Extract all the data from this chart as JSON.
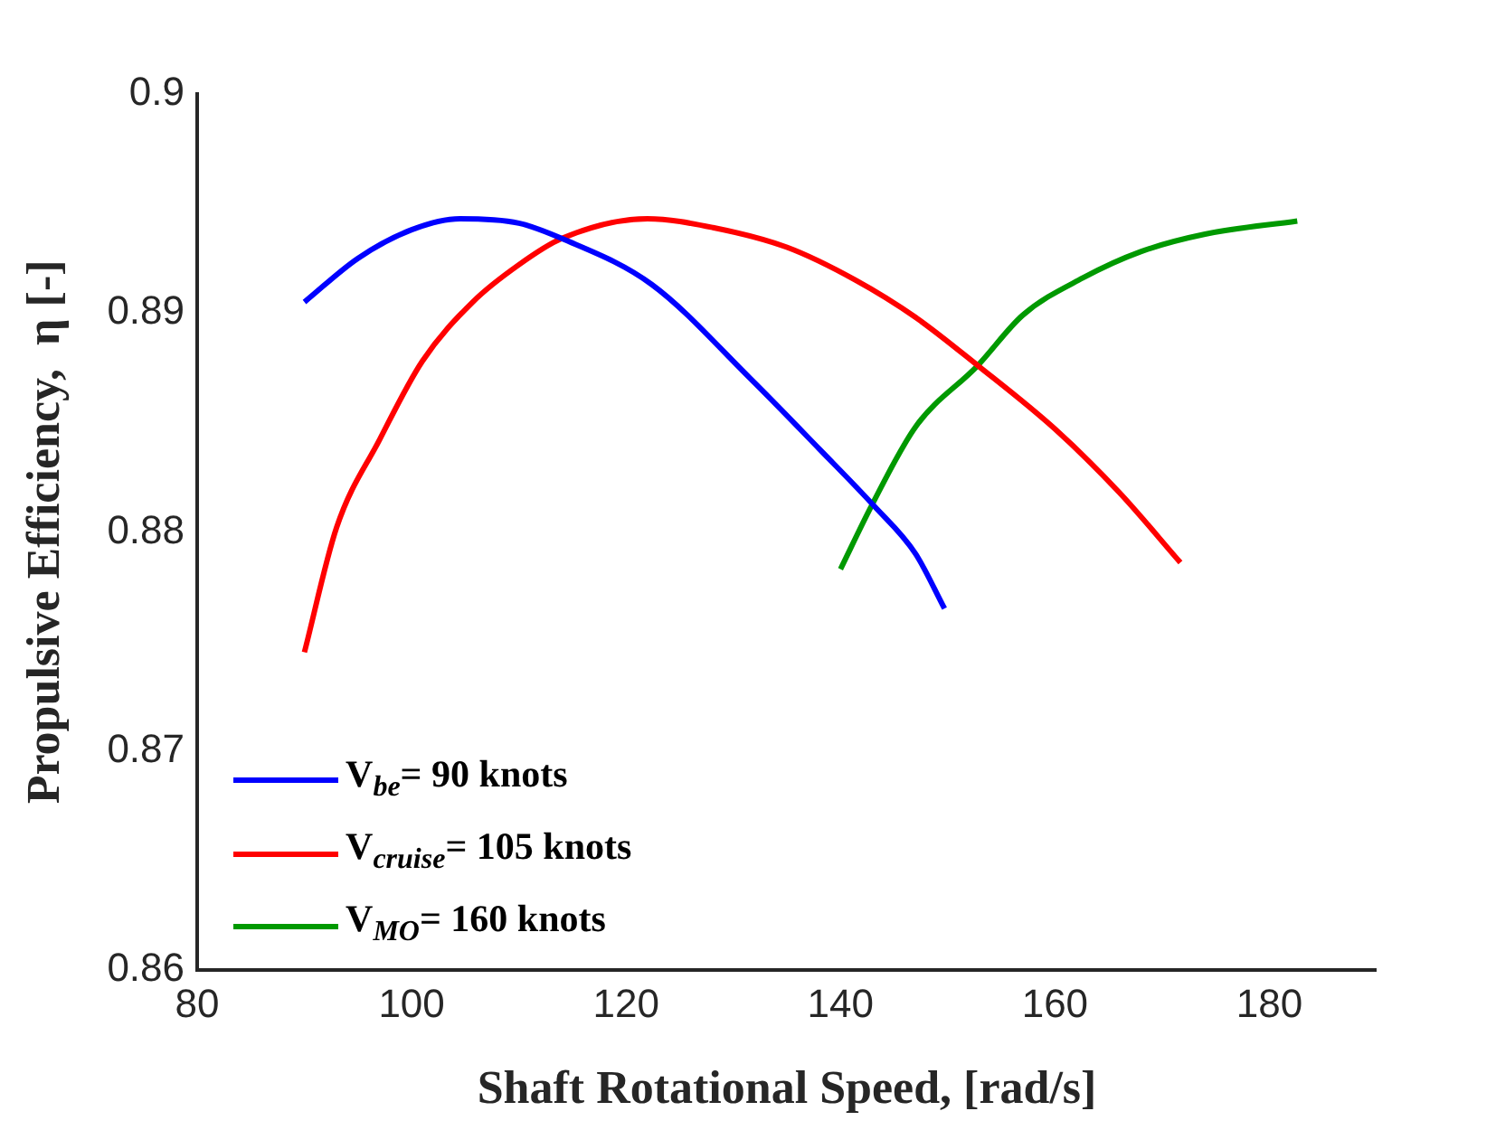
{
  "chart_data": {
    "type": "line",
    "xlabel": "Shaft Rotational Speed, [rad/s]",
    "ylabel": "Propulsive Efficiency,  η [-]",
    "xlim": [
      80,
      190
    ],
    "xticks": [
      80,
      100,
      120,
      140,
      160,
      180
    ],
    "ylim": [
      0.86,
      0.9
    ],
    "yticks": [
      0.86,
      0.87,
      0.88,
      0.89,
      0.9
    ],
    "grid": false,
    "legend": "bottom left",
    "marker": "none",
    "line_style": "solid",
    "series": [
      {
        "name": "V$_{be}$= 90 knots",
        "color": "#0000ff",
        "x": [
          90,
          95,
          100,
          104.5,
          110,
          114,
          122.4,
          131.6,
          138,
          143.1,
          147,
          149.7
        ],
        "values": [
          0.8905,
          0.8925,
          0.8938,
          0.8943,
          0.8941,
          0.8934,
          0.8913,
          0.887,
          0.8838,
          0.8812,
          0.879,
          0.8765
        ]
      },
      {
        "name": "V$_{cruise}$= 105 knots",
        "color": "#ff0000",
        "x": [
          90,
          93,
          97,
          101,
          105.7,
          110,
          114,
          122,
          128.1,
          135,
          141.4,
          147,
          152.8,
          160,
          166,
          171.7
        ],
        "values": [
          0.8745,
          0.8802,
          0.8842,
          0.8878,
          0.8905,
          0.8922,
          0.8934,
          0.8943,
          0.8939,
          0.893,
          0.8915,
          0.8898,
          0.8876,
          0.8847,
          0.8818,
          0.8786
        ]
      },
      {
        "name": "V$_{MO}$= 160 knots",
        "color": "#009900",
        "x": [
          140,
          142.9,
          147,
          152.8,
          157,
          162.6,
          168,
          174,
          182.6
        ],
        "values": [
          0.8783,
          0.8812,
          0.8848,
          0.8876,
          0.8899,
          0.8916,
          0.8928,
          0.8936,
          0.8942
        ]
      }
    ]
  }
}
